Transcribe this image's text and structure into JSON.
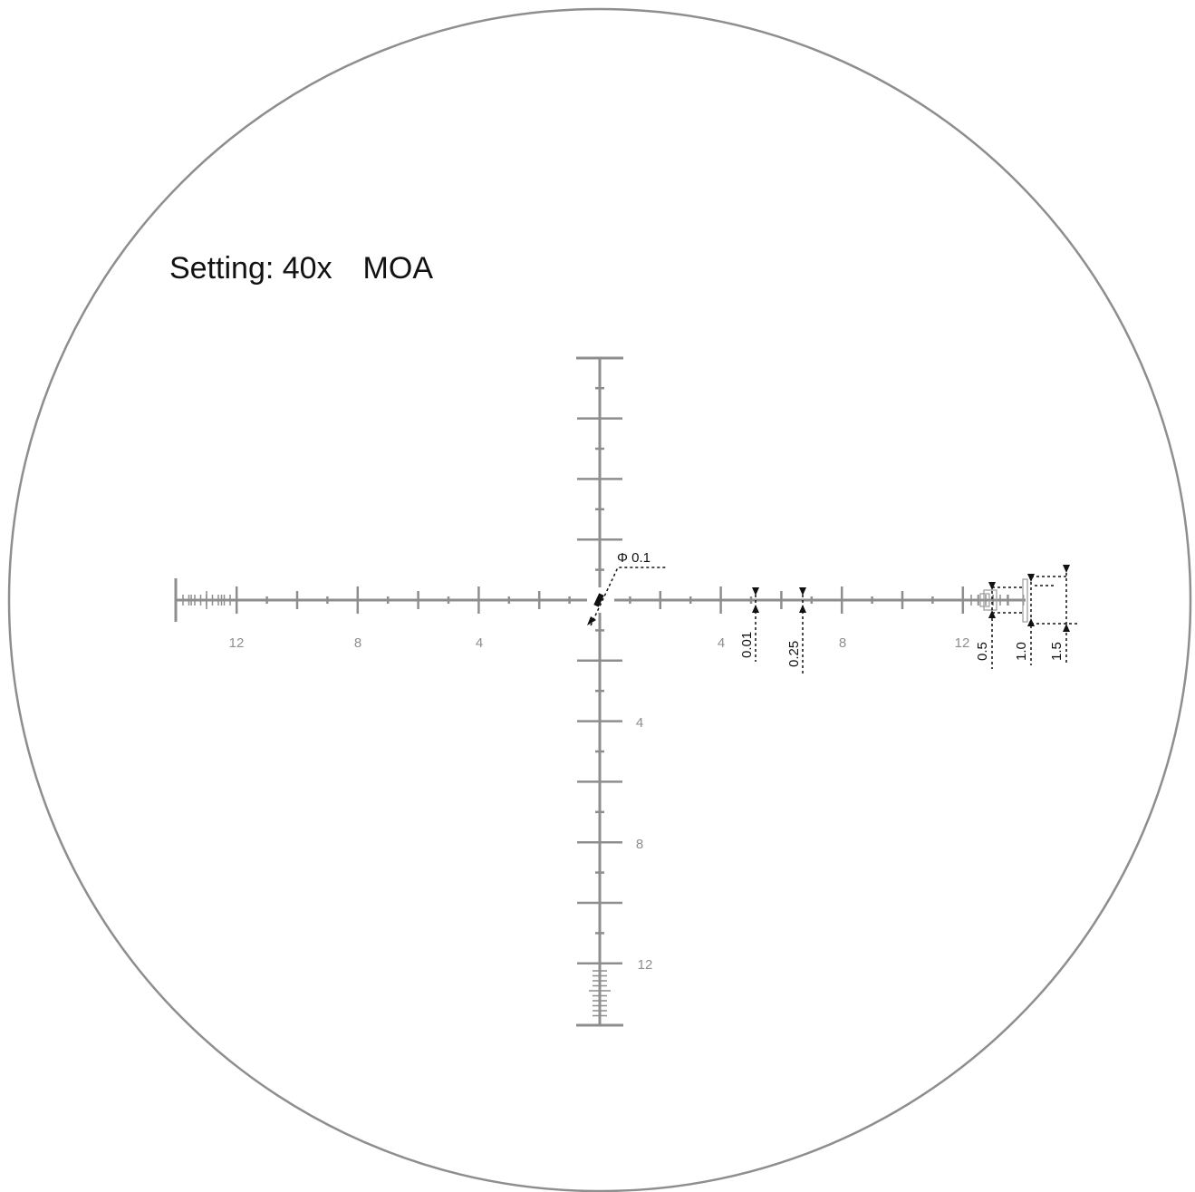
{
  "title": "Setting: 40x　MOA",
  "colors": {
    "reticle": "#8e8e8e",
    "annotation": "#111111",
    "background": "#ffffff"
  },
  "reticle": {
    "units": "MOA",
    "horizontal": {
      "left_labels": [
        "12",
        "8",
        "4"
      ],
      "right_labels": [
        "4",
        "8",
        "12"
      ]
    },
    "vertical": {
      "lower_labels": [
        "4",
        "8",
        "12"
      ]
    }
  },
  "annotations": {
    "center_dot": "Φ 0.1",
    "line_width": "0.01",
    "tick_width": "0.25",
    "box_small": "0.5",
    "box_medium": "1.0",
    "box_large": "1.5"
  }
}
